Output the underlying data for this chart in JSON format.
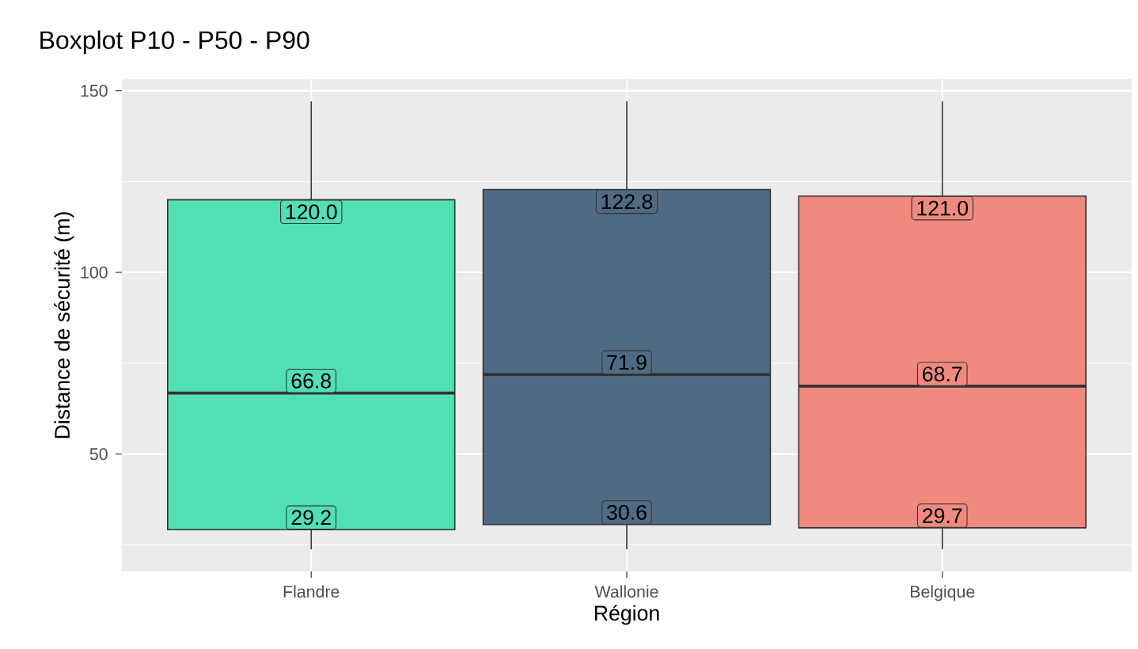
{
  "chart_data": {
    "type": "box",
    "title": "Boxplot P10 - P50 - P90",
    "xlabel": "Région",
    "ylabel": "Distance de sécurité (m)",
    "categories": [
      "Flandre",
      "Wallonie",
      "Belgique"
    ],
    "boxes": [
      {
        "low": 23.8,
        "q1": 29.2,
        "median": 66.8,
        "q3": 120.0,
        "high": 147.1
      },
      {
        "low": 23.8,
        "q1": 30.6,
        "median": 71.9,
        "q3": 122.8,
        "high": 147.1
      },
      {
        "low": 23.8,
        "q1": 29.7,
        "median": 68.7,
        "q3": 121.0,
        "high": 147.1
      }
    ],
    "colors": [
      "#52dfb5",
      "#4f6b84",
      "#f08a7e"
    ],
    "ylim": [
      17.7,
      153.2
    ],
    "yticks": [
      50,
      100,
      150
    ],
    "grid": true,
    "annotations": [
      {
        "text": "120.0",
        "x": "Flandre",
        "y": 120.0
      },
      {
        "text": "66.8",
        "x": "Flandre",
        "y": 66.8
      },
      {
        "text": "29.2",
        "x": "Flandre",
        "y": 29.2
      },
      {
        "text": "122.8",
        "x": "Wallonie",
        "y": 122.8
      },
      {
        "text": "71.9",
        "x": "Wallonie",
        "y": 71.9
      },
      {
        "text": "30.6",
        "x": "Wallonie",
        "y": 30.6
      },
      {
        "text": "121.0",
        "x": "Belgique",
        "y": 121.0
      },
      {
        "text": "68.7",
        "x": "Belgique",
        "y": 68.7
      },
      {
        "text": "29.7",
        "x": "Belgique",
        "y": 29.7
      }
    ]
  }
}
